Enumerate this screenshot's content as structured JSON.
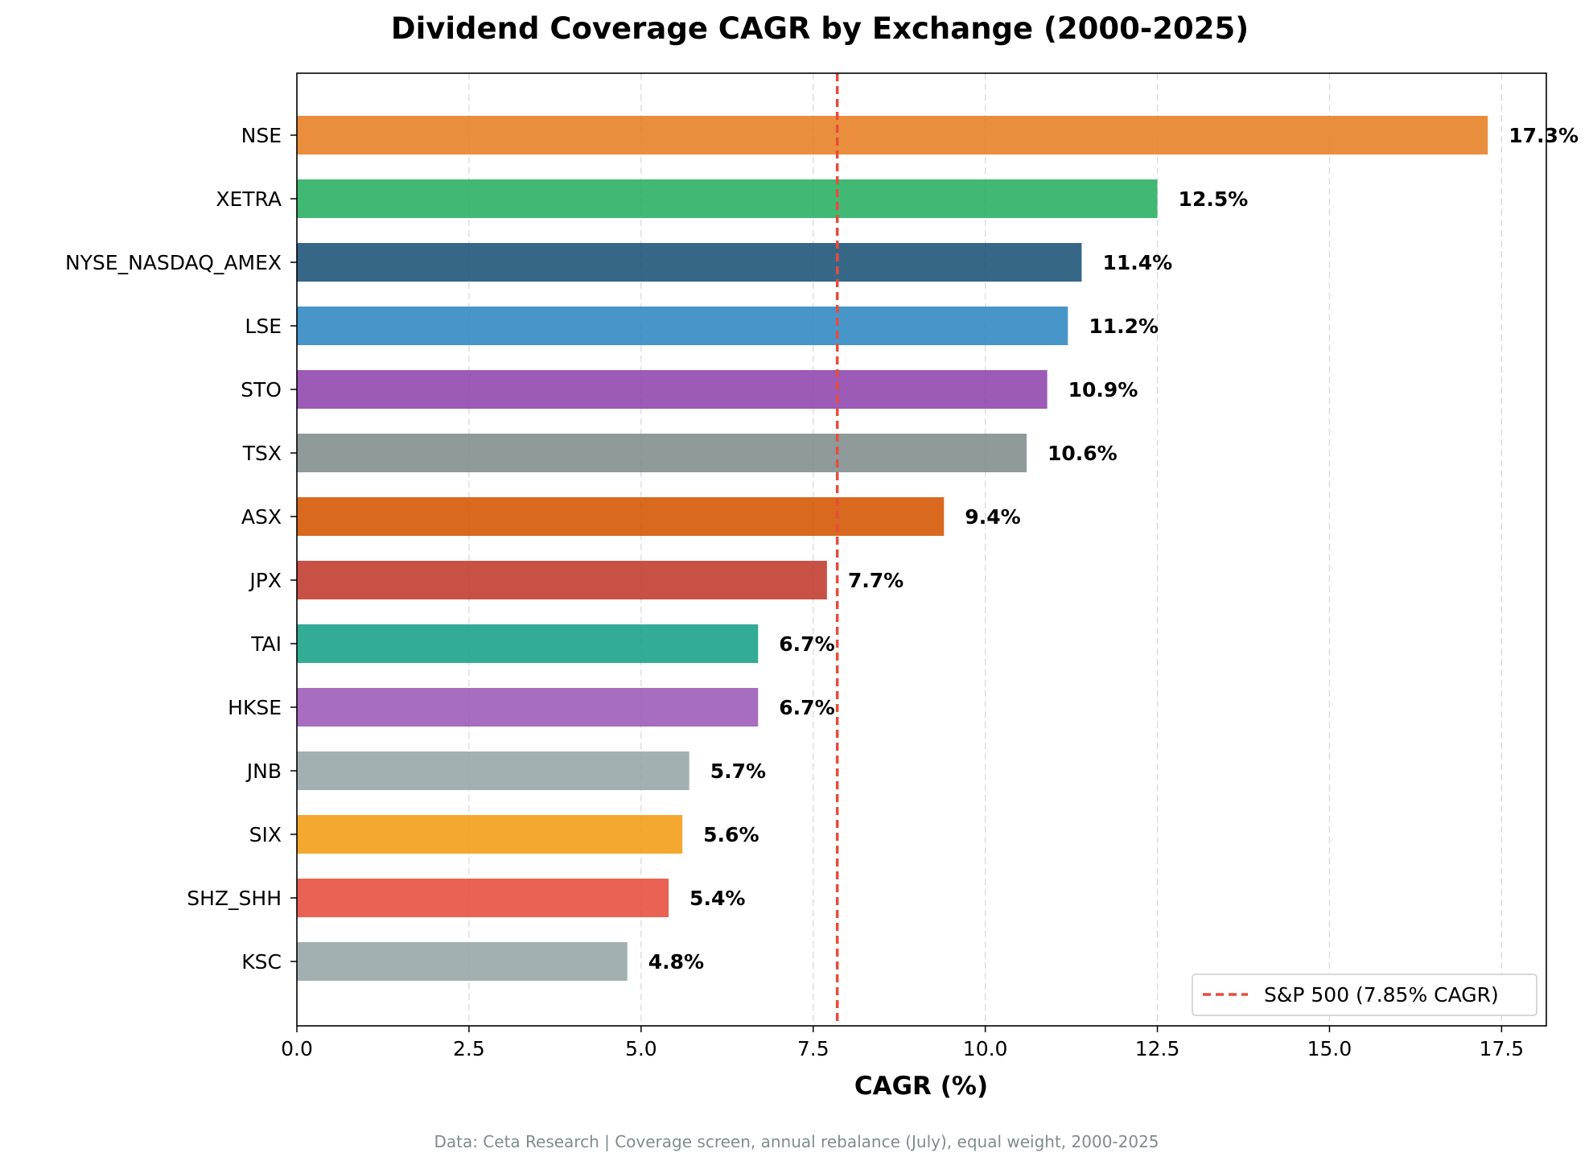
{
  "chart_data": {
    "type": "bar",
    "orientation": "horizontal",
    "title": "Dividend Coverage CAGR by Exchange (2000-2025)",
    "xlabel": "CAGR (%)",
    "ylabel": "",
    "xlim": [
      0,
      18.15
    ],
    "xticks": [
      "0.0",
      "2.5",
      "5.0",
      "7.5",
      "10.0",
      "12.5",
      "15.0",
      "17.5"
    ],
    "grid": "x-dashed",
    "categories": [
      "NSE",
      "XETRA",
      "NYSE_NASDAQ_AMEX",
      "LSE",
      "STO",
      "TSX",
      "ASX",
      "JPX",
      "TAI",
      "HKSE",
      "JNB",
      "SIX",
      "SHZ_SHH",
      "KSC"
    ],
    "values": [
      17.3,
      12.5,
      11.4,
      11.2,
      10.9,
      10.6,
      9.4,
      7.7,
      6.7,
      6.7,
      5.7,
      5.6,
      5.4,
      4.8
    ],
    "value_labels": [
      "17.3%",
      "12.5%",
      "11.4%",
      "11.2%",
      "10.9%",
      "10.6%",
      "9.4%",
      "7.7%",
      "6.7%",
      "6.7%",
      "5.7%",
      "5.6%",
      "5.4%",
      "4.8%"
    ],
    "colors": [
      "#e67e22",
      "#27ae60",
      "#1a5276",
      "#2e86c1",
      "#8e44ad",
      "#7f8c8d",
      "#d35400",
      "#c0392b",
      "#16a085",
      "#9b59b6",
      "#95a5a6",
      "#f39c12",
      "#e74c3c",
      "#95a5a6"
    ],
    "reference_line": {
      "value": 7.85,
      "label": "S&P 500 (7.85% CAGR)",
      "color": "#e74c3c",
      "style": "dashed"
    },
    "legend_position": "bottom-right",
    "footnote": "Data: Ceta Research | Coverage screen, annual rebalance (July), equal weight, 2000-2025"
  }
}
